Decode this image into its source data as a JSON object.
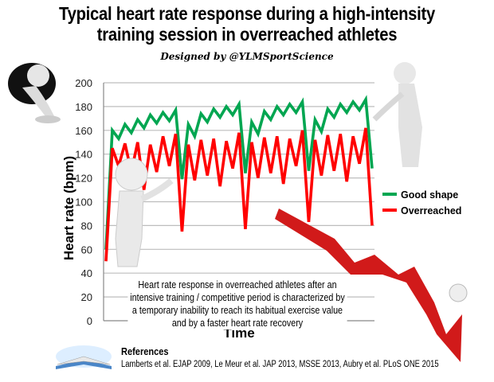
{
  "title_line1": "Typical heart rate response during a high-intensity",
  "title_line2": "training session in overreached athletes",
  "subtitle": "Designed by @YLMSportScience",
  "note": "Heart rate response in overreached athletes after an intensive training / competitive period is characterized by a temporary inability to reach its habitual exercise value and by a faster heart rate recovery",
  "references": {
    "heading": "References",
    "text": "Lamberts et al. EJAP 2009, Le Meur et al. JAP 2013, MSSE 2013, Aubry et al. PLoS ONE 2015"
  },
  "chart_data": {
    "type": "line",
    "xlabel": "Time",
    "ylabel": "Heart rate (bpm)",
    "ylim": [
      0,
      200
    ],
    "yticks": [
      0,
      20,
      40,
      60,
      80,
      100,
      120,
      140,
      160,
      180,
      200
    ],
    "grid": true,
    "legend_position": "right",
    "series": [
      {
        "name": "Good shape",
        "color": "#00a651",
        "values": [
          60,
          160,
          153,
          165,
          158,
          169,
          162,
          173,
          166,
          175,
          168,
          177,
          119,
          165,
          155,
          174,
          167,
          178,
          171,
          180,
          173,
          182,
          124,
          167,
          157,
          176,
          169,
          180,
          173,
          182,
          175,
          184,
          126,
          169,
          159,
          178,
          171,
          182,
          175,
          184,
          177,
          186,
          128
        ]
      },
      {
        "name": "Overreached",
        "color": "#ff0000",
        "values": [
          50,
          145,
          130,
          149,
          125,
          150,
          110,
          148,
          125,
          155,
          130,
          157,
          75,
          148,
          118,
          152,
          122,
          153,
          113,
          151,
          128,
          158,
          77,
          150,
          120,
          154,
          124,
          155,
          115,
          153,
          130,
          160,
          83,
          152,
          122,
          156,
          126,
          157,
          117,
          155,
          132,
          162,
          80
        ]
      }
    ]
  }
}
